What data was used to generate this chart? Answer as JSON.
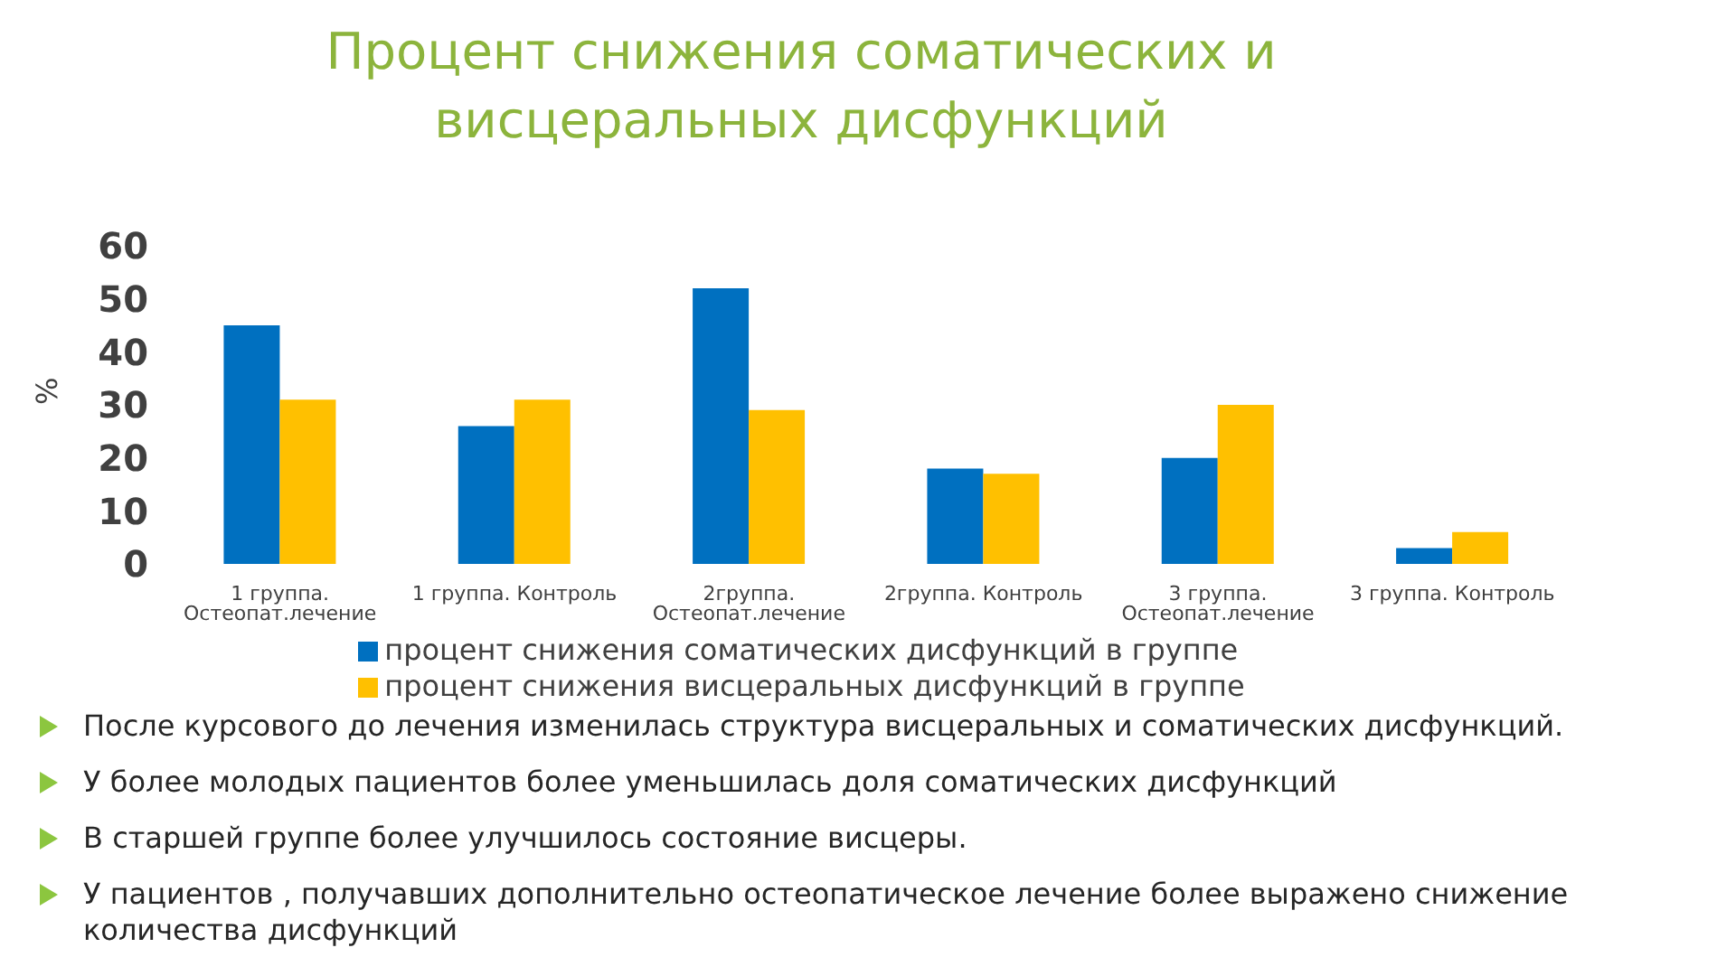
{
  "chart_data": {
    "type": "bar",
    "title": "Процент снижения соматических и висцеральных дисфункций",
    "ylabel": "%",
    "categories": [
      "1 группа. Остеопат.лечение",
      "1 группа. Контроль",
      "2группа. Остеопат.лечение",
      "2группа. Контроль",
      "3 группа. Остеопат.лечение",
      "3 группа. Контроль"
    ],
    "series": [
      {
        "name": "процент снижения соматических дисфункций в группе",
        "color": "#0070c0",
        "values": [
          45,
          26,
          52,
          18,
          20,
          3
        ]
      },
      {
        "name": "процент снижения висцеральных дисфункций в группе",
        "color": "#ffc000",
        "values": [
          31,
          31,
          29,
          17,
          30,
          6
        ]
      }
    ],
    "ylim": [
      0,
      60
    ],
    "yticks": [
      0,
      10,
      20,
      30,
      40,
      50,
      60
    ],
    "legend": "bottom",
    "annotations": [
      "После  курсового до лечения изменилась структура висцеральных и соматических дисфункций.",
      "У  более молодых пациентов более уменьшилась доля соматических дисфункций",
      "В старшей группе более улучшилось состояние висцеры.",
      "У пациентов , получавших дополнительно остеопатическое лечение более выражено снижение количества дисфункций"
    ]
  }
}
